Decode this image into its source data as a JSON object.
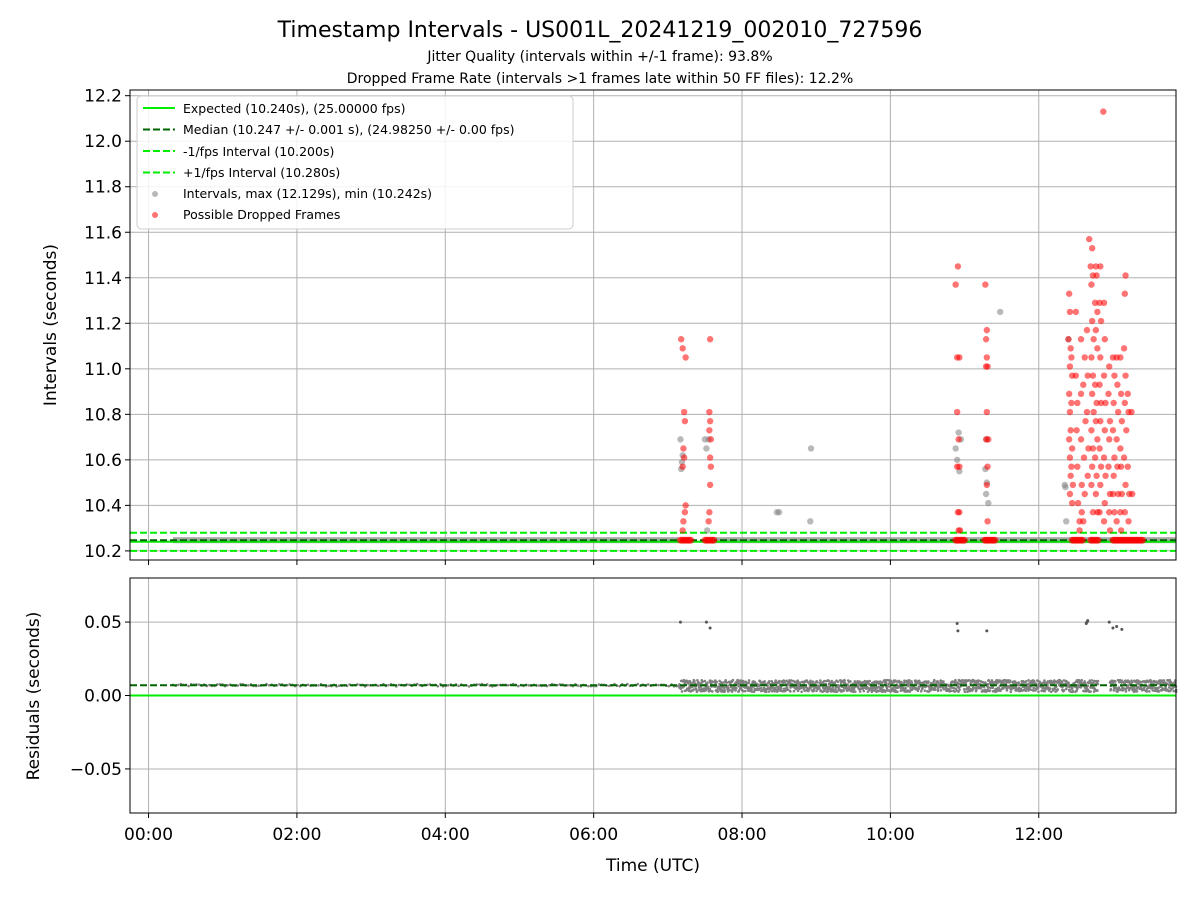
{
  "figure": {
    "title": "Timestamp Intervals - US001L_20241219_002010_727596",
    "subtitle_1": "Jitter Quality (intervals within +/-1 frame): 93.8%",
    "subtitle_2": "Dropped Frame Rate (intervals >1 frames late within 50 FF files): 12.2%"
  },
  "colors": {
    "expected": "#00ee00",
    "median": "#006400",
    "interval_points": "#808080",
    "dropped_points": "#ff0000",
    "grid": "#b0b0b0"
  },
  "chart_data": [
    {
      "type": "scatter",
      "panel": "intervals",
      "ylabel": "Intervals (seconds)",
      "xlim": [
        -0.25,
        13.85
      ],
      "ylim": [
        10.16,
        12.225
      ],
      "yticks": [
        10.2,
        10.4,
        10.6,
        10.8,
        11.0,
        11.2,
        11.4,
        11.6,
        11.8,
        12.0,
        12.2
      ],
      "ytick_labels": [
        "10.2",
        "10.4",
        "10.6",
        "10.8",
        "11.0",
        "11.2",
        "11.4",
        "11.6",
        "11.8",
        "12.0",
        "12.2"
      ],
      "grid": true,
      "legend_position": "upper-left",
      "lines": {
        "expected": {
          "label": "Expected (10.240s), (25.00000 fps)",
          "y": 10.24,
          "style": "solid"
        },
        "median": {
          "label": "Median (10.247 +/- 0.001 s), (24.98250 +/- 0.00 fps)",
          "y": 10.247,
          "style": "dashed"
        },
        "minus_fps": {
          "label": "-1/fps Interval (10.200s)",
          "y": 10.2,
          "style": "dashed"
        },
        "plus_fps": {
          "label": "+1/fps Interval (10.280s)",
          "y": 10.28,
          "style": "dashed"
        }
      },
      "baseline_segments": [
        [
          0.33,
          7.15
        ],
        [
          7.6,
          13.85
        ]
      ],
      "series": [
        {
          "name": "Intervals, max (12.129s), min (10.242s)",
          "points": [
            [
              7.17,
              10.69
            ],
            [
              7.18,
              10.56
            ],
            [
              7.19,
              10.59
            ],
            [
              7.2,
              10.62
            ],
            [
              7.5,
              10.69
            ],
            [
              7.52,
              10.65
            ],
            [
              7.55,
              10.69
            ],
            [
              7.53,
              10.29
            ],
            [
              8.47,
              10.37
            ],
            [
              8.5,
              10.37
            ],
            [
              8.92,
              10.33
            ],
            [
              8.93,
              10.65
            ],
            [
              10.88,
              10.65
            ],
            [
              10.9,
              10.6
            ],
            [
              10.92,
              10.72
            ],
            [
              10.93,
              10.55
            ],
            [
              10.95,
              10.69
            ],
            [
              11.28,
              10.56
            ],
            [
              11.3,
              10.5
            ],
            [
              11.29,
              10.45
            ],
            [
              11.32,
              10.41
            ],
            [
              11.3,
              10.69
            ],
            [
              11.48,
              11.25
            ],
            [
              12.35,
              10.49
            ],
            [
              12.36,
              10.48
            ],
            [
              12.37,
              10.33
            ],
            [
              12.4,
              11.13
            ]
          ]
        },
        {
          "name": "Possible Dropped Frames",
          "points": [
            [
              7.18,
              11.13
            ],
            [
              7.2,
              11.09
            ],
            [
              7.24,
              11.05
            ],
            [
              7.22,
              10.81
            ],
            [
              7.23,
              10.77
            ],
            [
              7.21,
              10.65
            ],
            [
              7.22,
              10.61
            ],
            [
              7.2,
              10.57
            ],
            [
              7.24,
              10.4
            ],
            [
              7.23,
              10.37
            ],
            [
              7.21,
              10.33
            ],
            [
              7.2,
              10.29
            ],
            [
              7.57,
              11.13
            ],
            [
              7.56,
              10.81
            ],
            [
              7.57,
              10.77
            ],
            [
              7.56,
              10.73
            ],
            [
              7.58,
              10.69
            ],
            [
              7.57,
              10.61
            ],
            [
              7.58,
              10.57
            ],
            [
              7.57,
              10.49
            ],
            [
              7.56,
              10.37
            ],
            [
              7.55,
              10.33
            ],
            [
              10.88,
              11.37
            ],
            [
              10.91,
              11.45
            ],
            [
              10.9,
              11.05
            ],
            [
              10.93,
              11.05
            ],
            [
              10.9,
              10.81
            ],
            [
              10.92,
              10.69
            ],
            [
              10.93,
              10.57
            ],
            [
              10.9,
              10.57
            ],
            [
              10.93,
              10.37
            ],
            [
              10.91,
              10.37
            ],
            [
              10.92,
              10.29
            ],
            [
              10.94,
              10.29
            ],
            [
              11.28,
              11.37
            ],
            [
              11.3,
              11.17
            ],
            [
              11.29,
              11.13
            ],
            [
              11.3,
              11.05
            ],
            [
              11.31,
              11.01
            ],
            [
              11.29,
              11.01
            ],
            [
              11.3,
              10.81
            ],
            [
              11.32,
              10.69
            ],
            [
              11.29,
              10.69
            ],
            [
              11.31,
              10.57
            ],
            [
              11.3,
              10.49
            ],
            [
              11.31,
              10.33
            ],
            [
              12.41,
              11.33
            ],
            [
              12.42,
              11.25
            ],
            [
              12.4,
              11.13
            ],
            [
              12.43,
              11.09
            ],
            [
              12.44,
              11.05
            ],
            [
              12.42,
              11.01
            ],
            [
              12.45,
              10.97
            ],
            [
              12.41,
              10.89
            ],
            [
              12.44,
              10.85
            ],
            [
              12.42,
              10.81
            ],
            [
              12.43,
              10.73
            ],
            [
              12.41,
              10.69
            ],
            [
              12.45,
              10.65
            ],
            [
              12.42,
              10.61
            ],
            [
              12.44,
              10.57
            ],
            [
              12.43,
              10.53
            ],
            [
              12.46,
              10.49
            ],
            [
              12.42,
              10.45
            ],
            [
              12.45,
              10.41
            ],
            [
              12.5,
              11.25
            ],
            [
              12.5,
              10.97
            ],
            [
              12.52,
              10.85
            ],
            [
              12.51,
              10.73
            ],
            [
              12.52,
              10.57
            ],
            [
              12.53,
              10.41
            ],
            [
              12.55,
              10.33
            ],
            [
              12.55,
              10.29
            ],
            [
              12.57,
              11.13
            ],
            [
              12.57,
              10.89
            ],
            [
              12.57,
              10.69
            ],
            [
              12.58,
              10.49
            ],
            [
              12.58,
              10.37
            ],
            [
              12.62,
              11.05
            ],
            [
              12.6,
              10.93
            ],
            [
              12.63,
              10.77
            ],
            [
              12.61,
              10.61
            ],
            [
              12.62,
              10.45
            ],
            [
              12.6,
              10.33
            ],
            [
              12.65,
              11.17
            ],
            [
              12.66,
              10.97
            ],
            [
              12.65,
              10.81
            ],
            [
              12.67,
              10.65
            ],
            [
              12.66,
              10.53
            ],
            [
              12.68,
              11.57
            ],
            [
              12.72,
              11.53
            ],
            [
              12.7,
              11.45
            ],
            [
              12.73,
              11.41
            ],
            [
              12.71,
              11.37
            ],
            [
              12.72,
              11.21
            ],
            [
              12.74,
              11.13
            ],
            [
              12.71,
              11.05
            ],
            [
              12.73,
              10.97
            ],
            [
              12.72,
              10.89
            ],
            [
              12.74,
              10.81
            ],
            [
              12.71,
              10.73
            ],
            [
              12.73,
              10.65
            ],
            [
              12.72,
              10.57
            ],
            [
              12.71,
              10.49
            ],
            [
              12.73,
              10.37
            ],
            [
              12.77,
              11.45
            ],
            [
              12.78,
              11.41
            ],
            [
              12.76,
              11.29
            ],
            [
              12.79,
              11.25
            ],
            [
              12.77,
              11.17
            ],
            [
              12.79,
              11.09
            ],
            [
              12.76,
              10.93
            ],
            [
              12.78,
              10.85
            ],
            [
              12.77,
              10.77
            ],
            [
              12.79,
              10.69
            ],
            [
              12.76,
              10.61
            ],
            [
              12.78,
              10.53
            ],
            [
              12.77,
              10.45
            ],
            [
              12.79,
              10.37
            ],
            [
              12.83,
              11.45
            ],
            [
              12.82,
              11.29
            ],
            [
              12.84,
              11.21
            ],
            [
              12.83,
              11.05
            ],
            [
              12.82,
              10.93
            ],
            [
              12.84,
              10.85
            ],
            [
              12.83,
              10.77
            ],
            [
              12.82,
              10.65
            ],
            [
              12.84,
              10.57
            ],
            [
              12.83,
              10.49
            ],
            [
              12.82,
              10.37
            ],
            [
              12.87,
              12.13
            ],
            [
              12.88,
              11.29
            ],
            [
              12.89,
              11.13
            ],
            [
              12.88,
              10.97
            ],
            [
              12.9,
              10.85
            ],
            [
              12.89,
              10.73
            ],
            [
              12.88,
              10.61
            ],
            [
              12.9,
              10.53
            ],
            [
              12.89,
              10.41
            ],
            [
              12.88,
              10.33
            ],
            [
              12.95,
              11.01
            ],
            [
              12.94,
              10.89
            ],
            [
              12.96,
              10.77
            ],
            [
              12.95,
              10.69
            ],
            [
              12.94,
              10.57
            ],
            [
              12.96,
              10.45
            ],
            [
              12.95,
              10.37
            ],
            [
              12.96,
              10.29
            ],
            [
              13.0,
              11.05
            ],
            [
              13.02,
              10.97
            ],
            [
              13.01,
              10.85
            ],
            [
              13.0,
              10.73
            ],
            [
              13.02,
              10.61
            ],
            [
              13.01,
              10.53
            ],
            [
              13.0,
              10.45
            ],
            [
              13.02,
              10.37
            ],
            [
              13.05,
              11.05
            ],
            [
              13.06,
              10.93
            ],
            [
              13.07,
              10.81
            ],
            [
              13.05,
              10.69
            ],
            [
              13.06,
              10.57
            ],
            [
              13.07,
              10.45
            ],
            [
              13.05,
              10.33
            ],
            [
              13.1,
              11.05
            ],
            [
              13.11,
              10.89
            ],
            [
              13.12,
              10.77
            ],
            [
              13.1,
              10.65
            ],
            [
              13.11,
              10.57
            ],
            [
              13.12,
              10.45
            ],
            [
              13.1,
              10.37
            ],
            [
              13.11,
              10.29
            ],
            [
              13.17,
              11.41
            ],
            [
              13.16,
              11.33
            ],
            [
              13.15,
              11.09
            ],
            [
              13.17,
              10.97
            ],
            [
              13.16,
              10.85
            ],
            [
              13.18,
              10.73
            ],
            [
              13.15,
              10.61
            ],
            [
              13.17,
              10.49
            ],
            [
              13.16,
              10.37
            ],
            [
              13.2,
              10.89
            ],
            [
              13.21,
              10.81
            ],
            [
              13.2,
              10.57
            ],
            [
              13.22,
              10.45
            ],
            [
              13.21,
              10.33
            ],
            [
              13.25,
              10.81
            ],
            [
              13.26,
              10.45
            ]
          ]
        }
      ],
      "dropped_baseline_segments": [
        [
          7.17,
          7.32
        ],
        [
          7.5,
          7.62
        ],
        [
          10.88,
          11.0
        ],
        [
          11.27,
          11.42
        ],
        [
          12.45,
          12.6
        ],
        [
          12.7,
          12.8
        ],
        [
          13.0,
          13.4
        ]
      ]
    },
    {
      "type": "scatter",
      "panel": "residuals",
      "ylabel": "Residuals (seconds)",
      "xlabel": "Time (UTC)",
      "xlim": [
        -0.25,
        13.85
      ],
      "ylim": [
        -0.08,
        0.08
      ],
      "yticks": [
        0.05,
        0.0,
        -0.05
      ],
      "ytick_labels": [
        "0.05",
        "0.00",
        "−0.05"
      ],
      "xticks": [
        0,
        2,
        4,
        6,
        8,
        10,
        12
      ],
      "xtick_labels": [
        "00:00",
        "02:00",
        "04:00",
        "06:00",
        "08:00",
        "10:00",
        "12:00"
      ],
      "grid": true,
      "lines": {
        "expected": {
          "y": 0.0,
          "style": "solid"
        },
        "median": {
          "y": 0.007,
          "style": "dashed"
        }
      },
      "outliers": [
        [
          7.17,
          0.05
        ],
        [
          7.52,
          0.05
        ],
        [
          7.57,
          0.046
        ],
        [
          10.9,
          0.049
        ],
        [
          10.91,
          0.044
        ],
        [
          11.3,
          0.044
        ],
        [
          12.64,
          0.049
        ],
        [
          12.65,
          0.05
        ],
        [
          12.66,
          0.051
        ],
        [
          12.95,
          0.05
        ],
        [
          13.0,
          0.046
        ],
        [
          13.05,
          0.047
        ],
        [
          13.12,
          0.045
        ]
      ],
      "dense_band": {
        "x_start": 7.15,
        "x_end": 13.85,
        "y_center": 0.0065,
        "y_spread": 0.004
      },
      "sparse_band": {
        "x_start": 0.33,
        "x_end": 7.15,
        "y_center": 0.007,
        "y_spread": 0.0008
      },
      "gap": [
        12.8,
        12.95
      ]
    }
  ]
}
